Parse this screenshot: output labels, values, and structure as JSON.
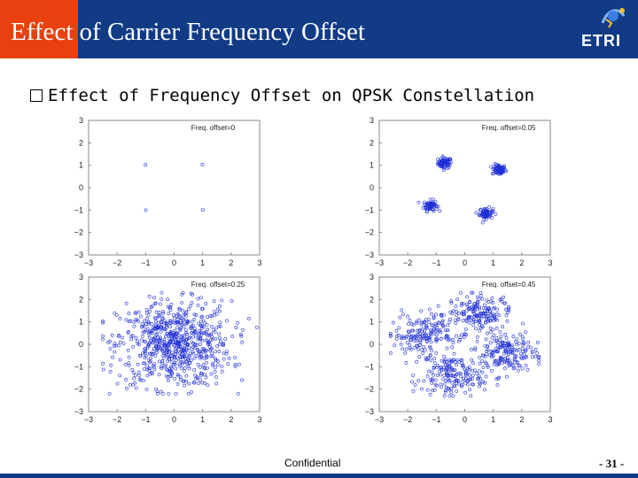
{
  "slide": {
    "title": "Effect of Carrier Frequency Offset",
    "logo_text": "ETRI",
    "bullet": "Effect of Frequency Offset on QPSK Constellation",
    "footer_label": "Confidential",
    "page_number": "- 31 -"
  },
  "colors": {
    "title_bar": "#123b86",
    "title_accent": "#e8410f",
    "marker": "#1f2fd6"
  },
  "chart_data": [
    {
      "type": "scatter",
      "annotation": "Freq. offset=0",
      "xlim": [
        -3,
        3
      ],
      "ylim": [
        -3,
        3
      ],
      "xticks": [
        -3,
        -2,
        -1,
        0,
        1,
        2,
        3
      ],
      "yticks": [
        3,
        2,
        1,
        0,
        -1,
        -2,
        -3
      ],
      "grid": false,
      "clusters": [
        {
          "x": -1,
          "y": 1,
          "spread": 0.02
        },
        {
          "x": 1,
          "y": 1,
          "spread": 0.02
        },
        {
          "x": -1,
          "y": -1,
          "spread": 0.02
        },
        {
          "x": 1,
          "y": -1,
          "spread": 0.02
        }
      ]
    },
    {
      "type": "scatter",
      "annotation": "Freq. offset=0.05",
      "xlim": [
        -3,
        3
      ],
      "ylim": [
        -3,
        3
      ],
      "xticks": [
        -3,
        -2,
        -1,
        0,
        1,
        2,
        3
      ],
      "yticks": [
        3,
        2,
        1,
        0,
        -1,
        -2,
        -3
      ],
      "grid": false,
      "clusters": [
        {
          "x": -0.7,
          "y": 1.1,
          "spread": 0.12
        },
        {
          "x": 1.2,
          "y": 0.8,
          "spread": 0.12
        },
        {
          "x": -1.2,
          "y": -0.8,
          "spread": 0.12
        },
        {
          "x": 0.75,
          "y": -1.15,
          "spread": 0.12
        }
      ]
    },
    {
      "type": "scatter",
      "annotation": "Freq. offset=0.25",
      "xlim": [
        -3,
        3
      ],
      "ylim": [
        -3,
        3
      ],
      "xticks": [
        -3,
        -2,
        -1,
        0,
        1,
        2,
        3
      ],
      "yticks": [
        3,
        2,
        1,
        0,
        -1,
        -2,
        -3
      ],
      "grid": false,
      "distribution": "diffuse cloud",
      "point_region": {
        "x": [
          -2.5,
          2.9
        ],
        "y": [
          -2.2,
          2.3
        ]
      }
    },
    {
      "type": "scatter",
      "annotation": "Freq. offset=0.45",
      "xlim": [
        -3,
        3
      ],
      "ylim": [
        -3,
        3
      ],
      "xticks": [
        -3,
        -2,
        -1,
        0,
        1,
        2,
        3
      ],
      "yticks": [
        3,
        2,
        1,
        0,
        -1,
        -2,
        -3
      ],
      "grid": false,
      "distribution": "four-lobed cloud",
      "point_region": {
        "x": [
          -2.6,
          2.6
        ],
        "y": [
          -2.3,
          2.3
        ]
      }
    }
  ]
}
